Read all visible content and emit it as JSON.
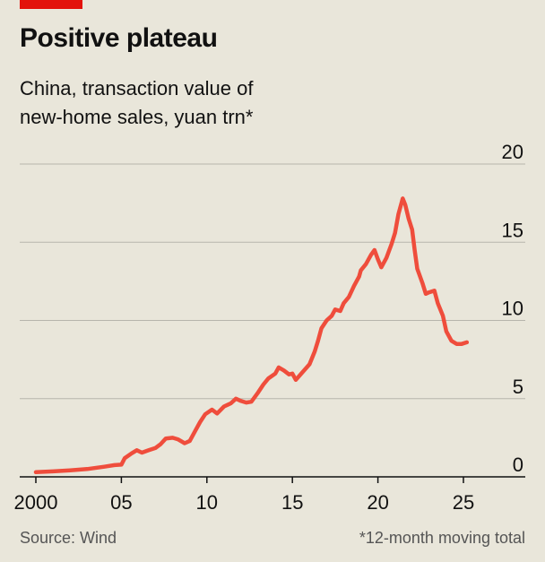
{
  "chart_data": {
    "type": "line",
    "title": "Positive plateau",
    "subtitle_lines": [
      "China, transaction value of",
      "new-home sales, yuan trn*"
    ],
    "ylabel": "yuan trn",
    "xlabel": "",
    "ylim": [
      0,
      20
    ],
    "xlim": [
      1999.8,
      2028
    ],
    "y_ticks": [
      0,
      5,
      10,
      15,
      20
    ],
    "x_ticks": [
      {
        "value": 2000,
        "label": "2000"
      },
      {
        "value": 2005,
        "label": "05"
      },
      {
        "value": 2010,
        "label": "10"
      },
      {
        "value": 2015,
        "label": "15"
      },
      {
        "value": 2020,
        "label": "20"
      },
      {
        "value": 2025,
        "label": "25"
      }
    ],
    "grid": true,
    "line_color": "#ef4d3c",
    "series": [
      {
        "name": "New-home sales, 12-month moving total",
        "points": [
          [
            2000.0,
            0.3
          ],
          [
            2001.0,
            0.35
          ],
          [
            2002.0,
            0.42
          ],
          [
            2003.0,
            0.5
          ],
          [
            2004.0,
            0.65
          ],
          [
            2004.6,
            0.75
          ],
          [
            2005.0,
            0.78
          ],
          [
            2005.2,
            1.2
          ],
          [
            2005.6,
            1.5
          ],
          [
            2005.9,
            1.7
          ],
          [
            2006.2,
            1.55
          ],
          [
            2006.6,
            1.7
          ],
          [
            2007.0,
            1.85
          ],
          [
            2007.3,
            2.1
          ],
          [
            2007.6,
            2.45
          ],
          [
            2008.0,
            2.5
          ],
          [
            2008.3,
            2.4
          ],
          [
            2008.7,
            2.15
          ],
          [
            2009.0,
            2.3
          ],
          [
            2009.3,
            2.9
          ],
          [
            2009.6,
            3.5
          ],
          [
            2009.9,
            4.0
          ],
          [
            2010.3,
            4.3
          ],
          [
            2010.6,
            4.05
          ],
          [
            2011.0,
            4.5
          ],
          [
            2011.4,
            4.7
          ],
          [
            2011.7,
            5.0
          ],
          [
            2012.0,
            4.85
          ],
          [
            2012.3,
            4.75
          ],
          [
            2012.6,
            4.8
          ],
          [
            2013.0,
            5.4
          ],
          [
            2013.3,
            5.9
          ],
          [
            2013.6,
            6.3
          ],
          [
            2014.0,
            6.6
          ],
          [
            2014.2,
            7.0
          ],
          [
            2014.5,
            6.8
          ],
          [
            2014.8,
            6.55
          ],
          [
            2015.0,
            6.6
          ],
          [
            2015.2,
            6.2
          ],
          [
            2015.6,
            6.7
          ],
          [
            2016.0,
            7.2
          ],
          [
            2016.3,
            8.0
          ],
          [
            2016.5,
            8.7
          ],
          [
            2016.7,
            9.5
          ],
          [
            2017.0,
            10.0
          ],
          [
            2017.3,
            10.3
          ],
          [
            2017.5,
            10.7
          ],
          [
            2017.8,
            10.6
          ],
          [
            2018.0,
            11.1
          ],
          [
            2018.3,
            11.5
          ],
          [
            2018.6,
            12.2
          ],
          [
            2018.9,
            12.8
          ],
          [
            2019.0,
            13.2
          ],
          [
            2019.3,
            13.6
          ],
          [
            2019.6,
            14.2
          ],
          [
            2019.8,
            14.5
          ],
          [
            2020.0,
            13.9
          ],
          [
            2020.2,
            13.4
          ],
          [
            2020.5,
            14.0
          ],
          [
            2020.8,
            14.9
          ],
          [
            2021.0,
            15.6
          ],
          [
            2021.2,
            16.8
          ],
          [
            2021.45,
            17.8
          ],
          [
            2021.6,
            17.4
          ],
          [
            2021.8,
            16.5
          ],
          [
            2022.0,
            15.8
          ],
          [
            2022.15,
            14.5
          ],
          [
            2022.3,
            13.3
          ],
          [
            2022.6,
            12.4
          ],
          [
            2022.8,
            11.7
          ],
          [
            2023.0,
            11.8
          ],
          [
            2023.3,
            11.9
          ],
          [
            2023.5,
            11.1
          ],
          [
            2023.8,
            10.3
          ],
          [
            2024.0,
            9.3
          ],
          [
            2024.3,
            8.7
          ],
          [
            2024.6,
            8.5
          ],
          [
            2024.9,
            8.5
          ],
          [
            2025.2,
            8.6
          ]
        ]
      }
    ]
  },
  "footer": {
    "source": "Source: Wind",
    "note": "*12-month moving total"
  }
}
